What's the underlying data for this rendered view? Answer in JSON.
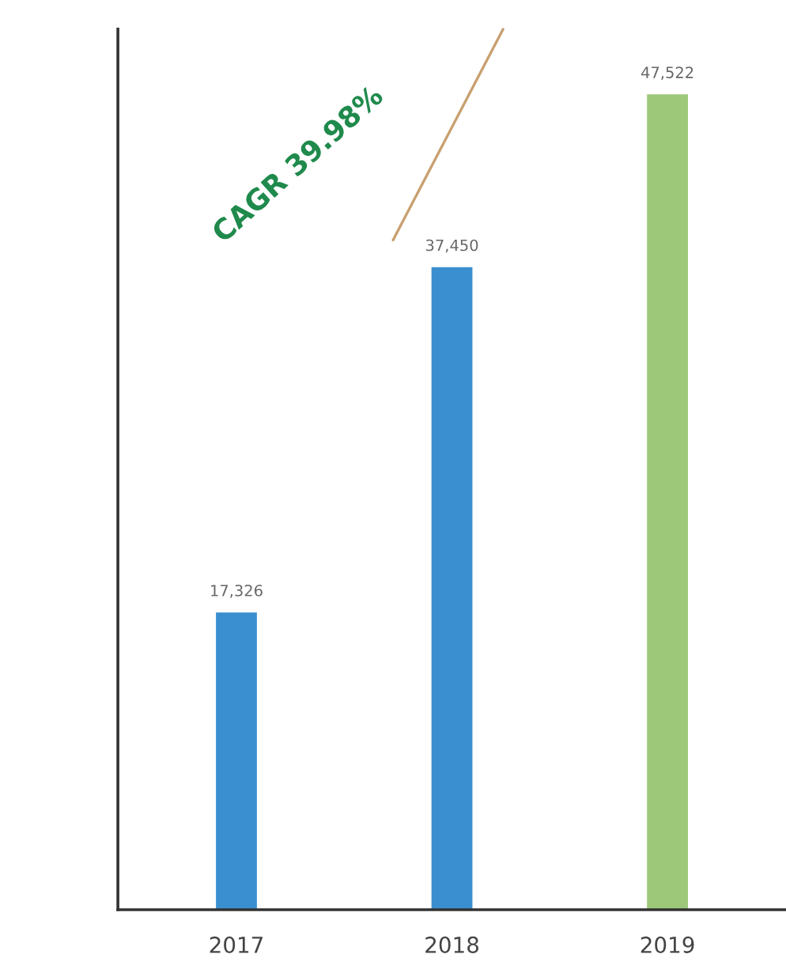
{
  "chart_data": {
    "type": "bar",
    "categories": [
      "2017",
      "2018",
      "2019"
    ],
    "values": [
      17326,
      37450,
      47522
    ],
    "colors": [
      "#3a8fd0",
      "#3a8fd0",
      "#9dc87a"
    ],
    "data_labels": true,
    "value_labels": [
      "17,326",
      "37,450",
      "47,522"
    ],
    "annotations": [
      "CAGR 39.98%"
    ],
    "grid": false,
    "legend": false,
    "tick_labels": "x"
  }
}
